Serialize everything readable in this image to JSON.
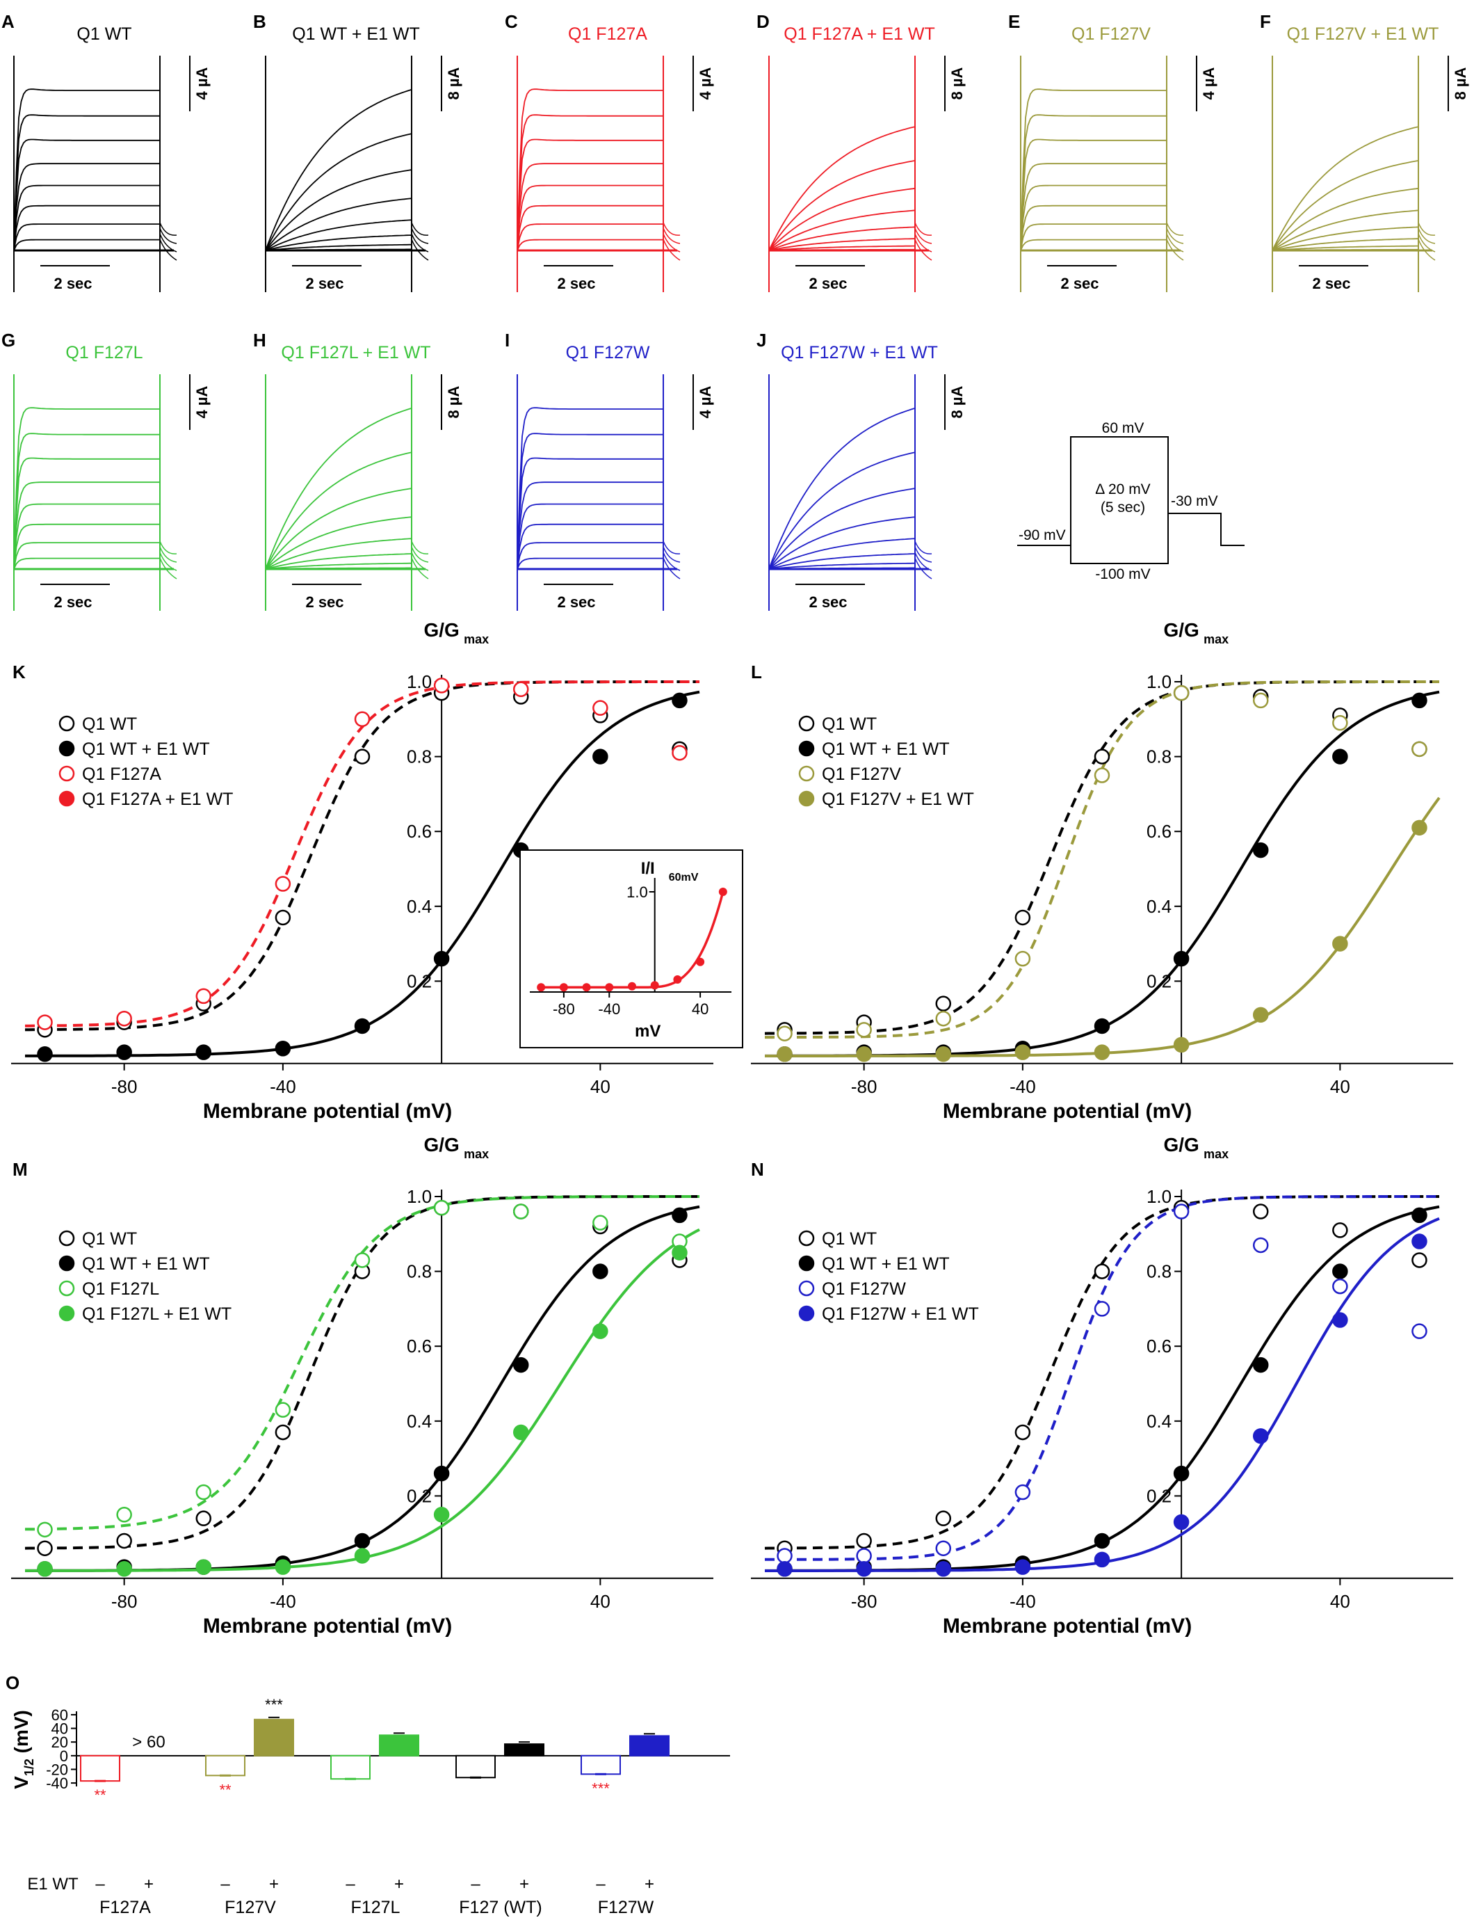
{
  "colors": {
    "wt": "#000000",
    "F127A": "#ee1c25",
    "F127V": "#9b9a3c",
    "F127L": "#3cc43c",
    "F127W": "#1f1fc8",
    "sig_red": "#ee1c25"
  },
  "traces": {
    "time_scale_label": "2 sec",
    "panels": [
      {
        "letter": "A",
        "title": "Q1 WT",
        "color_key": "wt",
        "scale_label": "4 µA",
        "kind": "fast"
      },
      {
        "letter": "B",
        "title": "Q1 WT + E1 WT",
        "color_key": "wt",
        "scale_label": "8 µA",
        "kind": "slow"
      },
      {
        "letter": "C",
        "title": "Q1 F127A",
        "color_key": "F127A",
        "scale_label": "4 µA",
        "kind": "fast"
      },
      {
        "letter": "D",
        "title": "Q1 F127A + E1 WT",
        "color_key": "F127A",
        "scale_label": "8 µA",
        "kind": "slow_small"
      },
      {
        "letter": "E",
        "title": "Q1 F127V",
        "color_key": "F127V",
        "scale_label": "4 µA",
        "kind": "fast"
      },
      {
        "letter": "F",
        "title": "Q1 F127V + E1 WT",
        "color_key": "F127V",
        "scale_label": "8 µA",
        "kind": "slow_small"
      },
      {
        "letter": "G",
        "title": "Q1 F127L",
        "color_key": "F127L",
        "scale_label": "4 µA",
        "kind": "fast"
      },
      {
        "letter": "H",
        "title": "Q1 F127L + E1 WT",
        "color_key": "F127L",
        "scale_label": "8 µA",
        "kind": "slow"
      },
      {
        "letter": "I",
        "title": "Q1 F127W",
        "color_key": "F127W",
        "scale_label": "4 µA",
        "kind": "fast"
      },
      {
        "letter": "J",
        "title": "Q1 F127W + E1 WT",
        "color_key": "F127W",
        "scale_label": "8 µA",
        "kind": "slow"
      }
    ]
  },
  "protocol": {
    "top": "60 mV",
    "step": "Δ 20 mV",
    "duration": "(5 sec)",
    "hold": "-90 mV",
    "bottom": "-100 mV",
    "tail": "-30 mV"
  },
  "chart_data": [
    {
      "panel": "K",
      "type": "scatter",
      "ylabel": "G/G",
      "ylabel_sub": "max",
      "xlabel": "Membrane potential (mV)",
      "xlim": [
        -105,
        65
      ],
      "ylim": [
        0,
        1.0
      ],
      "xticks": [
        -80,
        -40,
        40
      ],
      "yticks": [
        0.2,
        0.4,
        0.6,
        0.8,
        1.0
      ],
      "x": [
        -100,
        -80,
        -60,
        -40,
        -20,
        0,
        20,
        40,
        60
      ],
      "series": [
        {
          "name": "Q1 WT",
          "color_key": "wt",
          "filled": false,
          "dashed": true,
          "values": [
            0.07,
            0.09,
            0.14,
            0.37,
            0.8,
            0.97,
            0.96,
            0.91,
            0.82
          ]
        },
        {
          "name": "Q1 WT + E1 WT",
          "color_key": "wt",
          "filled": true,
          "dashed": false,
          "values": [
            0.005,
            0.01,
            0.01,
            0.02,
            0.08,
            0.26,
            0.55,
            0.8,
            0.95
          ]
        },
        {
          "name": "Q1 F127A",
          "color_key": "F127A",
          "filled": false,
          "dashed": true,
          "values": [
            0.09,
            0.1,
            0.16,
            0.46,
            0.9,
            0.99,
            0.98,
            0.93,
            0.81
          ]
        },
        {
          "name": "Q1 F127A + E1 WT",
          "color_key": "F127A",
          "filled": true,
          "dashed": false,
          "values": []
        }
      ],
      "curves": [
        {
          "color_key": "wt",
          "dashed": true,
          "v_half": -33,
          "slope": 9,
          "base": 0.07
        },
        {
          "color_key": "wt",
          "dashed": false,
          "v_half": 15,
          "slope": 14,
          "base": 0
        },
        {
          "color_key": "F127A",
          "dashed": true,
          "v_half": -37,
          "slope": 9,
          "base": 0.08
        }
      ],
      "inset": {
        "ylabel": "I/I",
        "ylabel_sub": "60mV",
        "xlabel": "mV",
        "xticks": [
          -80,
          -40,
          40
        ],
        "ytick": 1.0,
        "x": [
          -100,
          -80,
          -60,
          -40,
          -20,
          0,
          20,
          40,
          60
        ],
        "values": [
          0.02,
          0.02,
          0.02,
          0.02,
          0.03,
          0.04,
          0.1,
          0.28,
          1.0
        ]
      }
    },
    {
      "panel": "L",
      "type": "scatter",
      "ylabel": "G/G",
      "ylabel_sub": "max",
      "xlabel": "Membrane potential (mV)",
      "xlim": [
        -105,
        65
      ],
      "ylim": [
        0,
        1.0
      ],
      "xticks": [
        -80,
        -40,
        40
      ],
      "yticks": [
        0.2,
        0.4,
        0.6,
        0.8,
        1.0
      ],
      "x": [
        -100,
        -80,
        -60,
        -40,
        -20,
        0,
        20,
        40,
        60
      ],
      "series": [
        {
          "name": "Q1 WT",
          "color_key": "wt",
          "filled": false,
          "dashed": true,
          "values": [
            0.07,
            0.09,
            0.14,
            0.37,
            0.8,
            0.97,
            0.96,
            0.91,
            0.82
          ]
        },
        {
          "name": "Q1 WT + E1 WT",
          "color_key": "wt",
          "filled": true,
          "dashed": false,
          "values": [
            0.005,
            0.01,
            0.01,
            0.02,
            0.08,
            0.26,
            0.55,
            0.8,
            0.95
          ]
        },
        {
          "name": "Q1 F127V",
          "color_key": "F127V",
          "filled": false,
          "dashed": true,
          "values": [
            0.06,
            0.07,
            0.1,
            0.26,
            0.75,
            0.97,
            0.95,
            0.89,
            0.82
          ]
        },
        {
          "name": "Q1 F127V + E1 WT",
          "color_key": "F127V",
          "filled": true,
          "dashed": false,
          "values": [
            0.005,
            0.005,
            0.005,
            0.01,
            0.01,
            0.03,
            0.11,
            0.3,
            0.61
          ]
        }
      ],
      "curves": [
        {
          "color_key": "wt",
          "dashed": true,
          "v_half": -33,
          "slope": 9,
          "base": 0.06
        },
        {
          "color_key": "wt",
          "dashed": false,
          "v_half": 15,
          "slope": 14,
          "base": 0
        },
        {
          "color_key": "F127V",
          "dashed": true,
          "v_half": -29,
          "slope": 8,
          "base": 0.05
        },
        {
          "color_key": "F127V",
          "dashed": false,
          "v_half": 53,
          "slope": 15,
          "base": 0
        }
      ]
    },
    {
      "panel": "M",
      "type": "scatter",
      "ylabel": "G/G",
      "ylabel_sub": "max",
      "xlabel": "Membrane potential (mV)",
      "xlim": [
        -105,
        65
      ],
      "ylim": [
        0,
        1.0
      ],
      "xticks": [
        -80,
        -40,
        40
      ],
      "yticks": [
        0.2,
        0.4,
        0.6,
        0.8,
        1.0
      ],
      "x": [
        -100,
        -80,
        -60,
        -40,
        -20,
        0,
        20,
        40,
        60
      ],
      "series": [
        {
          "name": "Q1 WT",
          "color_key": "wt",
          "filled": false,
          "dashed": true,
          "values": [
            0.06,
            0.08,
            0.14,
            0.37,
            0.8,
            0.97,
            0.96,
            0.92,
            0.83
          ]
        },
        {
          "name": "Q1 WT + E1 WT",
          "color_key": "wt",
          "filled": true,
          "dashed": false,
          "values": [
            0.005,
            0.01,
            0.01,
            0.02,
            0.08,
            0.26,
            0.55,
            0.8,
            0.95
          ]
        },
        {
          "name": "Q1 F127L",
          "color_key": "F127L",
          "filled": false,
          "dashed": true,
          "values": [
            0.11,
            0.15,
            0.21,
            0.43,
            0.83,
            0.97,
            0.96,
            0.93,
            0.88
          ]
        },
        {
          "name": "Q1 F127L + E1 WT",
          "color_key": "F127L",
          "filled": true,
          "dashed": false,
          "values": [
            0.005,
            0.005,
            0.01,
            0.01,
            0.04,
            0.15,
            0.37,
            0.64,
            0.85
          ]
        }
      ],
      "curves": [
        {
          "color_key": "wt",
          "dashed": true,
          "v_half": -33,
          "slope": 9,
          "base": 0.06
        },
        {
          "color_key": "wt",
          "dashed": false,
          "v_half": 15,
          "slope": 14,
          "base": 0
        },
        {
          "color_key": "F127L",
          "dashed": true,
          "v_half": -36,
          "slope": 10,
          "base": 0.11
        },
        {
          "color_key": "F127L",
          "dashed": false,
          "v_half": 30,
          "slope": 15,
          "base": 0
        }
      ]
    },
    {
      "panel": "N",
      "type": "scatter",
      "ylabel": "G/G",
      "ylabel_sub": "max",
      "xlabel": "Membrane potential (mV)",
      "xlim": [
        -105,
        65
      ],
      "ylim": [
        0,
        1.0
      ],
      "xticks": [
        -80,
        -40,
        40
      ],
      "yticks": [
        0.2,
        0.4,
        0.6,
        0.8,
        1.0
      ],
      "x": [
        -100,
        -80,
        -60,
        -40,
        -20,
        0,
        20,
        40,
        60
      ],
      "series": [
        {
          "name": "Q1 WT",
          "color_key": "wt",
          "filled": false,
          "dashed": true,
          "values": [
            0.06,
            0.08,
            0.14,
            0.37,
            0.8,
            0.97,
            0.96,
            0.91,
            0.83
          ]
        },
        {
          "name": "Q1 WT + E1 WT",
          "color_key": "wt",
          "filled": true,
          "dashed": false,
          "values": [
            0.005,
            0.01,
            0.01,
            0.02,
            0.08,
            0.26,
            0.55,
            0.8,
            0.95
          ]
        },
        {
          "name": "Q1 F127W",
          "color_key": "F127W",
          "filled": false,
          "dashed": true,
          "values": [
            0.04,
            0.04,
            0.06,
            0.21,
            0.7,
            0.96,
            0.87,
            0.76,
            0.64
          ]
        },
        {
          "name": "Q1 F127W + E1 WT",
          "color_key": "F127W",
          "filled": true,
          "dashed": false,
          "values": [
            0.005,
            0.005,
            0.005,
            0.01,
            0.03,
            0.13,
            0.36,
            0.67,
            0.88
          ]
        }
      ],
      "curves": [
        {
          "color_key": "wt",
          "dashed": true,
          "v_half": -33,
          "slope": 9,
          "base": 0.06
        },
        {
          "color_key": "wt",
          "dashed": false,
          "v_half": 15,
          "slope": 14,
          "base": 0
        },
        {
          "color_key": "F127W",
          "dashed": true,
          "v_half": -28,
          "slope": 8,
          "base": 0.03
        },
        {
          "color_key": "F127W",
          "dashed": false,
          "v_half": 29,
          "slope": 13,
          "base": 0
        }
      ]
    },
    {
      "panel": "O",
      "type": "bar",
      "ylabel": "V",
      "ylabel_sub": "1/2",
      "ylabel_unit": " (mV)",
      "ylim": [
        -45,
        65
      ],
      "yticks": [
        -40,
        -20,
        0,
        20,
        40,
        60
      ],
      "row_label": "E1 WT",
      "minus": "–",
      "plus": "+",
      "groups": [
        {
          "name": "F127A",
          "color_key": "F127A",
          "minus": -37,
          "plus": null,
          "plus_text": "> 60",
          "minus_sig": "**",
          "minus_sig_color": "sig_red",
          "plus_sig": ""
        },
        {
          "name": "F127V",
          "color_key": "F127V",
          "minus": -29,
          "plus": 53,
          "minus_sig": "**",
          "minus_sig_color": "sig_red",
          "plus_sig": "***"
        },
        {
          "name": "F127L",
          "color_key": "F127L",
          "minus": -34,
          "plus": 30,
          "minus_sig": "",
          "plus_sig": ""
        },
        {
          "name": "F127 (WT)",
          "color_key": "wt",
          "minus": -32,
          "plus": 17,
          "minus_sig": "",
          "plus_sig": ""
        },
        {
          "name": "F127W",
          "color_key": "F127W",
          "minus": -27,
          "plus": 29,
          "minus_sig": "***",
          "minus_sig_color": "sig_red",
          "plus_sig": ""
        }
      ]
    }
  ]
}
